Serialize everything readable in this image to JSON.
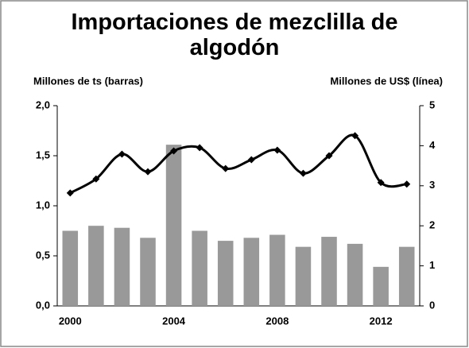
{
  "chart_data": {
    "type": "bar-line",
    "title": "Importaciones de mezclilla de algodón",
    "ylabel": "Millones de ts (barras)",
    "y2label": "Millones de US$ (línea)",
    "categories": [
      2000,
      null,
      null,
      null,
      2004,
      null,
      null,
      null,
      2008,
      null,
      null,
      null,
      2012,
      null
    ],
    "series": [
      {
        "name": "barras",
        "type": "bar",
        "color": "#999999",
        "values": [
          0.75,
          0.8,
          0.78,
          0.68,
          1.61,
          0.75,
          0.65,
          0.68,
          0.71,
          0.59,
          0.69,
          0.62,
          0.39,
          0.59
        ]
      },
      {
        "name": "línea",
        "type": "line",
        "axis": "y2",
        "color": "#000000",
        "values": [
          2.82,
          3.17,
          3.79,
          3.35,
          3.87,
          3.95,
          3.43,
          3.65,
          3.89,
          3.31,
          3.75,
          4.25,
          3.08,
          3.04
        ]
      }
    ],
    "ylim": [
      0,
      2
    ],
    "yticks": [
      {
        "value": 0,
        "label": "0,0"
      },
      {
        "value": 0.5,
        "label": "0,5"
      },
      {
        "value": 1,
        "label": "1,0"
      },
      {
        "value": 1.5,
        "label": "1,5"
      },
      {
        "value": 2,
        "label": "2,0"
      }
    ],
    "y2lim": [
      0,
      5
    ],
    "y2ticks": [
      0,
      1,
      2,
      3,
      4,
      5
    ]
  }
}
